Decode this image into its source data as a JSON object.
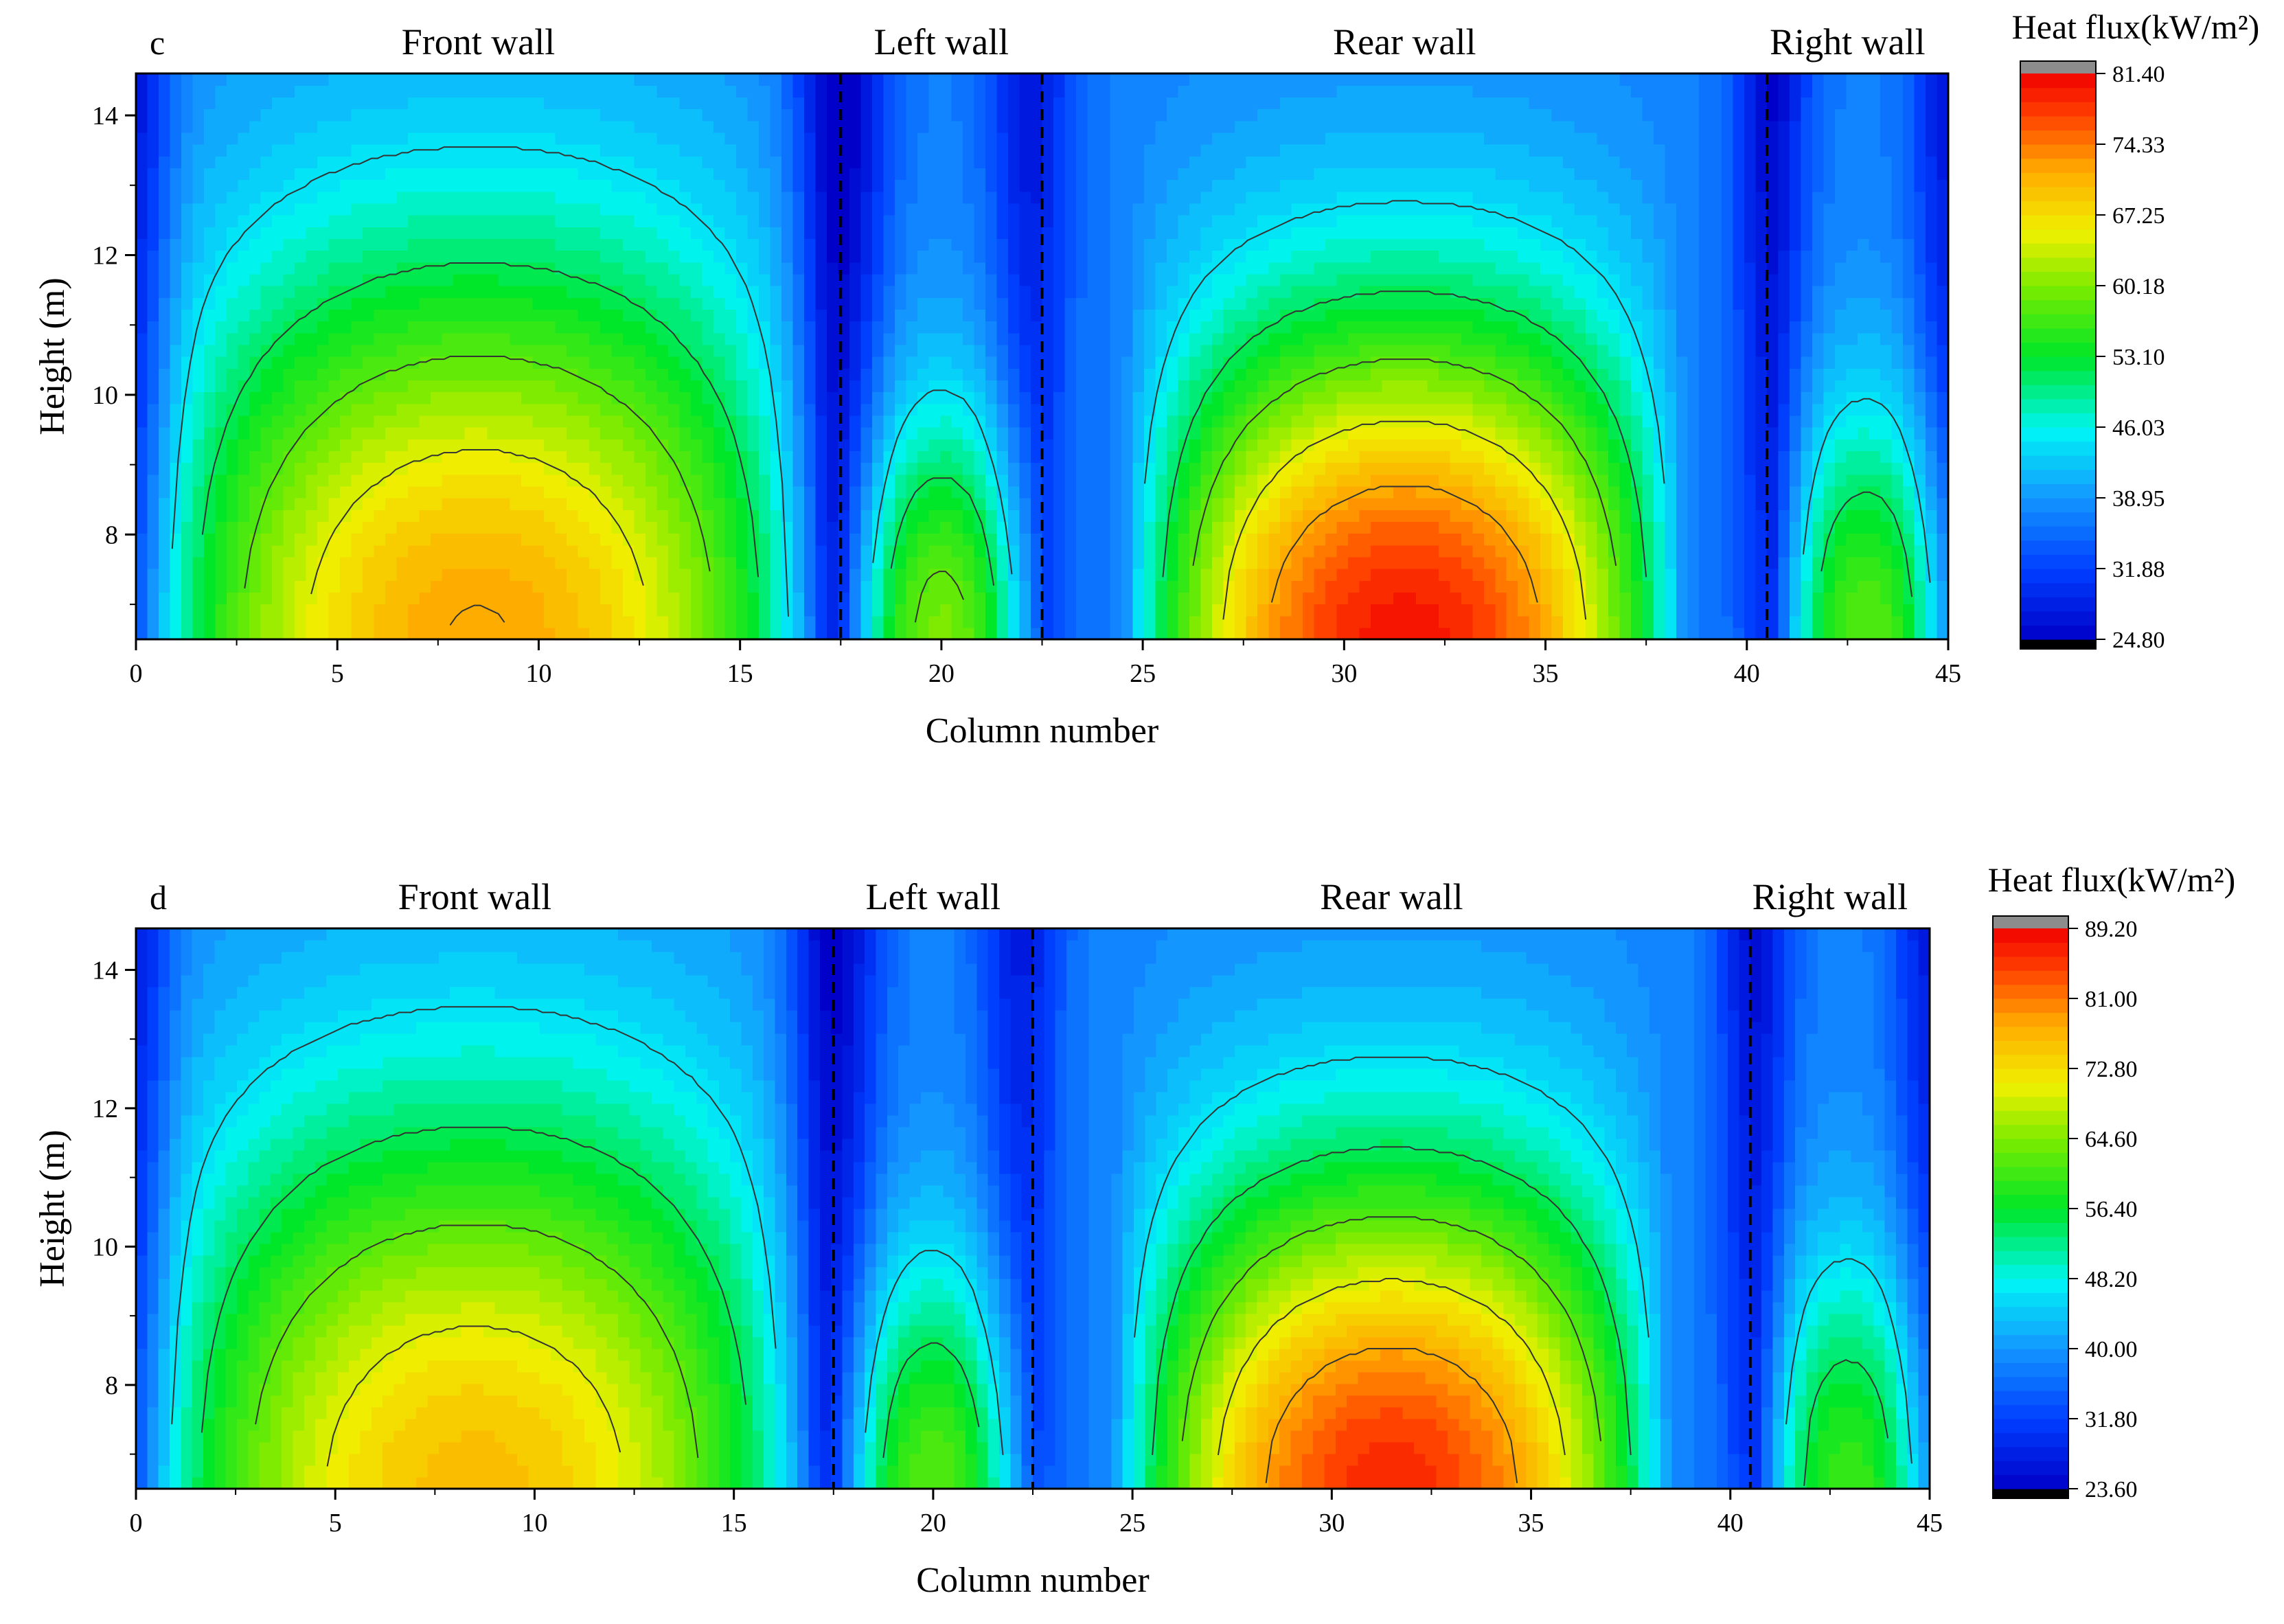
{
  "chart_data": [
    {
      "type": "heatmap",
      "subtype": "filled-contour",
      "panel_label": "c",
      "xlabel": "Column number",
      "ylabel": "Height (m)",
      "xlim": [
        0,
        45
      ],
      "ylim": [
        6.5,
        14.6
      ],
      "xticks": [
        0,
        5,
        10,
        15,
        20,
        25,
        30,
        35,
        40,
        45
      ],
      "yticks": [
        8,
        10,
        12,
        14
      ],
      "wall_dividers": [
        17.5,
        22.5,
        40.5
      ],
      "wall_labels": [
        {
          "text": "Front wall",
          "x": 8.5
        },
        {
          "text": "Left wall",
          "x": 20
        },
        {
          "text": "Rear wall",
          "x": 31.5
        },
        {
          "text": "Right wall",
          "x": 42.5
        }
      ],
      "colorbar": {
        "title": "Heat flux(kW/m²)",
        "min": 24.8,
        "max": 81.4,
        "ticks": [
          "81.40",
          "74.33",
          "67.25",
          "60.18",
          "53.10",
          "46.03",
          "38.95",
          "31.88",
          "24.80"
        ]
      },
      "model": {
        "baseline": 37,
        "humps": [
          {
            "name": "front",
            "center": 8.5,
            "halfwidth": 8.6,
            "peak": 72,
            "decay": 7.2
          },
          {
            "name": "left",
            "center": 20,
            "halfwidth": 2.5,
            "peak": 60,
            "decay": 4.3
          },
          {
            "name": "rear",
            "center": 31.5,
            "halfwidth": 7.0,
            "peak": 80,
            "decay": 6.0
          },
          {
            "name": "right",
            "center": 43,
            "halfwidth": 2.3,
            "peak": 58,
            "decay": 4.3
          }
        ],
        "valleys": [
          {
            "center": 17.5,
            "width": 1.1,
            "depth": 14
          },
          {
            "center": 22.2,
            "width": 1.0,
            "depth": 10
          },
          {
            "center": 40.6,
            "width": 0.9,
            "depth": 12
          },
          {
            "center": 0,
            "width": 0.9,
            "depth": 10
          },
          {
            "center": 45,
            "width": 0.9,
            "depth": 10
          }
        ]
      }
    },
    {
      "type": "heatmap",
      "subtype": "filled-contour",
      "panel_label": "d",
      "xlabel": "Column number",
      "ylabel": "Height (m)",
      "xlim": [
        0,
        45
      ],
      "ylim": [
        6.5,
        14.6
      ],
      "xticks": [
        0,
        5,
        10,
        15,
        20,
        25,
        30,
        35,
        40,
        45
      ],
      "yticks": [
        8,
        10,
        12,
        14
      ],
      "wall_dividers": [
        17.5,
        22.5,
        40.5
      ],
      "wall_labels": [
        {
          "text": "Front wall",
          "x": 8.5
        },
        {
          "text": "Left wall",
          "x": 20
        },
        {
          "text": "Rear wall",
          "x": 31.5
        },
        {
          "text": "Right wall",
          "x": 42.5
        }
      ],
      "colorbar": {
        "title": "Heat flux(kW/m²)",
        "min": 23.6,
        "max": 89.2,
        "ticks": [
          "89.20",
          "81.00",
          "72.80",
          "64.60",
          "56.40",
          "48.20",
          "40.00",
          "31.80",
          "23.60"
        ]
      },
      "model": {
        "baseline": 38,
        "humps": [
          {
            "name": "front",
            "center": 8.5,
            "halfwidth": 8.6,
            "peak": 76,
            "decay": 7.2
          },
          {
            "name": "left",
            "center": 20,
            "halfwidth": 2.5,
            "peak": 62,
            "decay": 4.3
          },
          {
            "name": "rear",
            "center": 31.5,
            "halfwidth": 7.0,
            "peak": 86,
            "decay": 6.0
          },
          {
            "name": "right",
            "center": 43,
            "halfwidth": 2.3,
            "peak": 60,
            "decay": 4.3
          }
        ],
        "valleys": [
          {
            "center": 17.5,
            "width": 1.1,
            "depth": 15
          },
          {
            "center": 22.2,
            "width": 1.0,
            "depth": 11
          },
          {
            "center": 40.6,
            "width": 0.9,
            "depth": 13
          },
          {
            "center": 0,
            "width": 0.9,
            "depth": 11
          },
          {
            "center": 45,
            "width": 0.9,
            "depth": 11
          }
        ]
      }
    }
  ]
}
